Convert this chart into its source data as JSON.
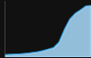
{
  "title": "",
  "background_color": "#111111",
  "plot_bg_color": "#111111",
  "line_color": "#1a8ccc",
  "fill_color": "#aaddff",
  "fill_alpha": 0.85,
  "line_width": 0.7,
  "years": [
    1861,
    1871,
    1881,
    1891,
    1901,
    1911,
    1921,
    1931,
    1936,
    1951,
    1961,
    1971,
    1981,
    1991,
    2001,
    2011,
    2019
  ],
  "population": [
    5500,
    5700,
    6000,
    6200,
    6600,
    7200,
    7800,
    8800,
    9500,
    11500,
    16000,
    27000,
    36000,
    41000,
    44000,
    47500,
    47800
  ],
  "ylim": [
    4000,
    52000
  ],
  "xlim": [
    1861,
    2019
  ],
  "spine_color": "#555555"
}
